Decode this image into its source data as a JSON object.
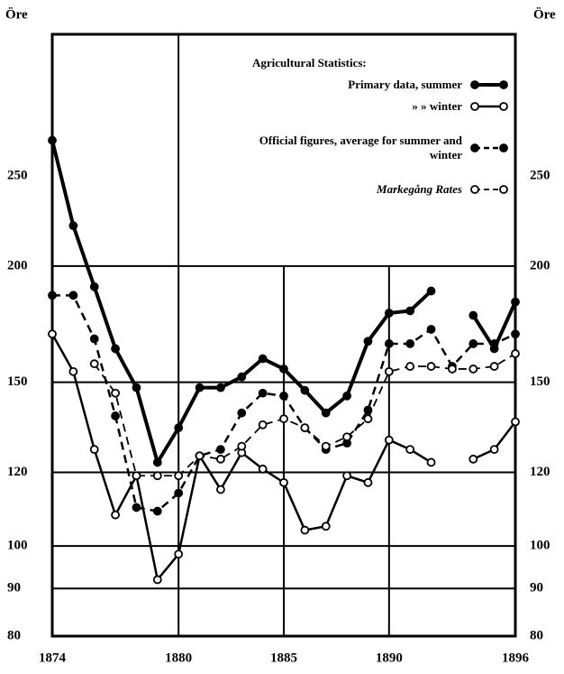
{
  "chart_data": {
    "type": "line",
    "y_label_left": "Öre",
    "y_label_right": "Öre",
    "log_scale": true,
    "grid": true,
    "legend_title": "Agricultural Statistics:",
    "x": [
      1874,
      1875,
      1876,
      1877,
      1878,
      1879,
      1880,
      1881,
      1882,
      1883,
      1884,
      1885,
      1886,
      1887,
      1888,
      1889,
      1890,
      1891,
      1892,
      1893,
      1894,
      1895,
      1896
    ],
    "xlim": [
      1874,
      1896
    ],
    "xticks": [
      1874,
      1880,
      1885,
      1890,
      1896
    ],
    "ylim": [
      80,
      355
    ],
    "yticks": [
      80,
      90,
      100,
      120,
      150,
      200,
      250
    ],
    "ygrid": [
      90,
      100,
      120,
      150,
      200
    ],
    "series": [
      {
        "name": "Primary data, summer",
        "color": "#000000",
        "dash": false,
        "marker": "filled",
        "width": 4,
        "values": [
          273,
          221,
          190,
          163,
          148,
          123,
          134,
          148,
          148,
          152,
          159,
          155,
          147,
          139,
          145,
          166,
          178,
          179,
          188,
          null,
          177,
          163,
          183
        ]
      },
      {
        "name": "» » winter",
        "color": "#000000",
        "dash": false,
        "marker": "open",
        "width": 2.5,
        "values": [
          169,
          154,
          127,
          108,
          119,
          92,
          98,
          125,
          115,
          126,
          121,
          117,
          104,
          105,
          119,
          117,
          130,
          127,
          123,
          null,
          124,
          127,
          136
        ]
      },
      {
        "name": "Official figures, average for summer and winter",
        "color": "#000000",
        "dash": true,
        "marker": "filled",
        "width": 2.5,
        "values": [
          186,
          186,
          167,
          138,
          110,
          109,
          114,
          125,
          127,
          139,
          146,
          145,
          134,
          127,
          129,
          140,
          165,
          165,
          171,
          156,
          165,
          165,
          169
        ]
      },
      {
        "name": "Markegång Rates",
        "color": "#000000",
        "dash": true,
        "marker": "open",
        "width": 1.8,
        "values": [
          null,
          null,
          157,
          146,
          119,
          119,
          119,
          125,
          124,
          128,
          135,
          137,
          134,
          128,
          131,
          137,
          154,
          156,
          156,
          155,
          155,
          156,
          161
        ]
      }
    ]
  }
}
